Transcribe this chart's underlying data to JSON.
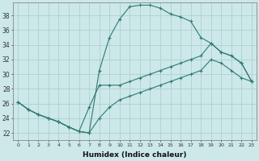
{
  "title": "",
  "xlabel": "Humidex (Indice chaleur)",
  "ylabel": "",
  "bg_color": "#cce8e8",
  "grid_color": "#b0d0d0",
  "line_color": "#2e7b6e",
  "x_ticks": [
    0,
    1,
    2,
    3,
    4,
    5,
    6,
    7,
    8,
    9,
    10,
    11,
    12,
    13,
    14,
    15,
    16,
    17,
    18,
    19,
    20,
    21,
    22,
    23
  ],
  "y_ticks": [
    22,
    24,
    26,
    28,
    30,
    32,
    34,
    36,
    38
  ],
  "xlim": [
    -0.5,
    23.5
  ],
  "ylim": [
    21.0,
    39.8
  ],
  "curve1_x": [
    0,
    1,
    2,
    3,
    4,
    5,
    6,
    7,
    8,
    9,
    10,
    11,
    12,
    13,
    14,
    15,
    16,
    17,
    18,
    19,
    20,
    21,
    22,
    23
  ],
  "curve1_y": [
    26.2,
    25.2,
    24.5,
    24.0,
    23.5,
    22.8,
    22.2,
    22.0,
    30.5,
    35.0,
    37.5,
    39.2,
    39.4,
    39.4,
    39.0,
    38.2,
    37.8,
    37.2,
    35.0,
    34.2,
    33.0,
    32.5,
    31.5,
    29.0
  ],
  "curve2_x": [
    0,
    1,
    2,
    3,
    4,
    5,
    6,
    7,
    8,
    9,
    10,
    11,
    12,
    13,
    14,
    15,
    16,
    17,
    18,
    19,
    20,
    21,
    22,
    23
  ],
  "curve2_y": [
    26.2,
    25.2,
    24.5,
    24.0,
    23.5,
    22.8,
    22.2,
    25.5,
    28.5,
    28.5,
    28.5,
    29.0,
    29.5,
    30.0,
    30.5,
    31.0,
    31.5,
    32.0,
    32.5,
    34.2,
    33.0,
    32.5,
    31.5,
    29.0
  ],
  "curve3_x": [
    0,
    1,
    2,
    3,
    4,
    5,
    6,
    7,
    8,
    9,
    10,
    11,
    12,
    13,
    14,
    15,
    16,
    17,
    18,
    19,
    20,
    21,
    22,
    23
  ],
  "curve3_y": [
    26.2,
    25.2,
    24.5,
    24.0,
    23.5,
    22.8,
    22.2,
    22.0,
    24.0,
    25.5,
    26.5,
    27.0,
    27.5,
    28.0,
    28.5,
    29.0,
    29.5,
    30.0,
    30.5,
    32.0,
    31.5,
    30.5,
    29.5,
    29.0
  ]
}
